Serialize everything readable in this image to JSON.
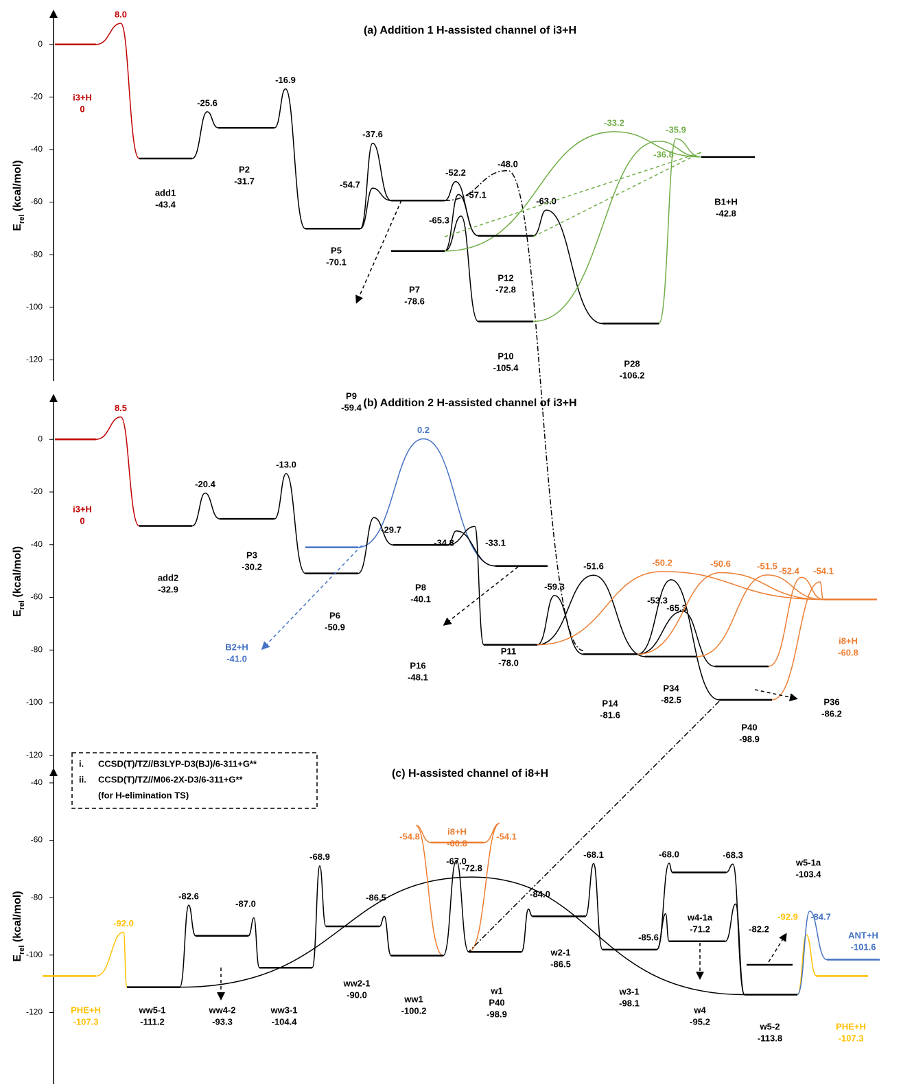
{
  "chart_data": [
    {
      "type": "energy-diagram",
      "title": "(a) Addition 1 H-assisted channel of i3+H",
      "ylabel": [
        "E",
        "rel",
        " (kcal/mol)"
      ],
      "ylim": [
        13,
        -128
      ],
      "yticks": [
        0,
        -20,
        -40,
        -60,
        -80,
        -100,
        -120
      ],
      "levels": {
        "names": [
          "i3+H",
          "add1",
          "P2",
          "P5",
          "P9",
          "P7",
          "P12",
          "P10",
          "P28",
          "B1+H"
        ],
        "values": [
          0,
          -43.4,
          -31.7,
          -70.1,
          -59.4,
          -78.6,
          -72.8,
          -105.4,
          -106.2,
          -42.8
        ],
        "value_labels": [
          "0",
          "-43.4",
          "-31.7",
          "-70.1",
          "-59.4",
          "-78.6",
          "-72.8",
          "-105.4",
          "-106.2",
          "-42.8"
        ],
        "colors": [
          "#c00000",
          "#000000",
          "#000000",
          "#000000",
          "#000000",
          "#000000",
          "#000000",
          "#000000",
          "#000000",
          "#000000"
        ]
      },
      "barriers": {
        "values": [
          8.0,
          -25.6,
          -16.9,
          -37.6,
          -54.7,
          -52.2,
          -57.1,
          -65.3,
          -48.0,
          -63.0,
          -33.2,
          -36.8,
          -35.9
        ],
        "value_labels": [
          "8.0",
          "-25.6",
          "-16.9",
          "-37.6",
          "-54.7",
          "-52.2",
          "-57.1",
          "-65.3",
          "-48.0",
          "-63.0",
          "-33.2",
          "-36.8",
          "-35.9"
        ],
        "colors": [
          "#c00000",
          "#000000",
          "#000000",
          "#000000",
          "#000000",
          "#000000",
          "#000000",
          "#000000",
          "#000000",
          "#000000",
          "#70ad47",
          "#70ad47",
          "#70ad47"
        ]
      }
    },
    {
      "type": "energy-diagram",
      "title": "(b) Addition 2 H-assisted channel of i3+H",
      "ylabel": [
        "E",
        "rel",
        " (kcal/mol)"
      ],
      "ylim": [
        17,
        -125
      ],
      "yticks": [
        0,
        -20,
        -40,
        -60,
        -80,
        -100,
        -120
      ],
      "levels": {
        "names": [
          "i3+H",
          "add2",
          "P3",
          "B2+H",
          "P6",
          "P8",
          "P16",
          "P11",
          "P14",
          "P34",
          "P36",
          "P40",
          "i8+H"
        ],
        "values": [
          0,
          -32.9,
          -30.2,
          -41.0,
          -50.9,
          -40.1,
          -48.1,
          -78.0,
          -81.6,
          -82.5,
          -86.2,
          -98.9,
          -60.8
        ],
        "value_labels": [
          "0",
          "-32.9",
          "-30.2",
          "-41.0",
          "-50.9",
          "-40.1",
          "-48.1",
          "-78.0",
          "-81.6",
          "-82.5",
          "-86.2",
          "-98.9",
          "-60.8"
        ],
        "colors": [
          "#c00000",
          "#000000",
          "#000000",
          "#4472c4",
          "#000000",
          "#000000",
          "#000000",
          "#000000",
          "#000000",
          "#000000",
          "#000000",
          "#000000",
          "#ed7d31"
        ]
      },
      "barriers": {
        "values": [
          8.5,
          -20.4,
          -13.0,
          0.2,
          -29.7,
          -34.8,
          -33.1,
          -59.3,
          -51.6,
          -53.3,
          -65.3,
          -50.2,
          -50.6,
          -51.5,
          -52.4,
          -54.1
        ],
        "value_labels": [
          "8.5",
          "-20.4",
          "-13.0",
          "0.2",
          "-29.7",
          "-34.8",
          "-33.1",
          "-59.3",
          "-51.6",
          "-53.3",
          "-65.3",
          "-50.2",
          "-50.6",
          "-51.5",
          "-52.4",
          "-54.1"
        ],
        "colors": [
          "#c00000",
          "#000000",
          "#000000",
          "#4472c4",
          "#000000",
          "#000000",
          "#000000",
          "#000000",
          "#000000",
          "#000000",
          "#000000",
          "#ed7d31",
          "#ed7d31",
          "#ed7d31",
          "#ed7d31",
          "#ed7d31"
        ]
      }
    },
    {
      "type": "energy-diagram",
      "title": "(c) H-assisted channel of i8+H",
      "ylabel": [
        "E",
        "rel",
        " (kcal/mol)"
      ],
      "ylim": [
        -35,
        -145
      ],
      "yticks": [
        -40,
        -60,
        -80,
        -100,
        -120
      ],
      "levels": {
        "names": [
          "PHE+H",
          "ww5-1",
          "ww4-2",
          "ww3-1",
          "ww2-1",
          "ww1",
          "i8+H",
          [
            "w1",
            "P40"
          ],
          "w2-1",
          "w3-1",
          "w4-1a",
          "w4",
          "w5-2",
          "w5-1a",
          "ANT+H",
          "PHE+H"
        ],
        "values": [
          -107.3,
          -111.2,
          -93.3,
          -104.4,
          -90.0,
          -100.2,
          -60.8,
          -98.9,
          -86.5,
          -98.1,
          -71.2,
          -95.2,
          -113.8,
          -103.4,
          -101.6,
          -107.3
        ],
        "value_labels": [
          "-107.3",
          "-111.2",
          "-93.3",
          "-104.4",
          "-90.0",
          "-100.2",
          "-60.8",
          "-98.9",
          "-86.5",
          "-98.1",
          "-71.2",
          "-95.2",
          "-113.8",
          "-103.4",
          "-101.6",
          "-107.3"
        ],
        "colors": [
          "#ffc000",
          "#000000",
          "#000000",
          "#000000",
          "#000000",
          "#000000",
          "#ed7d31",
          "#000000",
          "#000000",
          "#000000",
          "#000000",
          "#000000",
          "#000000",
          "#000000",
          "#4472c4",
          "#ffc000"
        ]
      },
      "barriers": {
        "values": [
          -92.0,
          -82.6,
          -87.0,
          -68.9,
          -72.8,
          -86.5,
          -67.0,
          -54.8,
          -54.1,
          -84.0,
          -68.1,
          -68.0,
          -85.6,
          -68.3,
          -82.2,
          -92.9,
          -84.7
        ],
        "value_labels": [
          "-92.0",
          "-82.6",
          "-87.0",
          "-68.9",
          "-72.8",
          "-86.5",
          "-67.0",
          "-54.8",
          "-54.1",
          "-84.0",
          "-68.1",
          "-68.0",
          "-85.6",
          "-68.3",
          "-82.2",
          "-92.9",
          "-84.7"
        ],
        "colors": [
          "#ffc000",
          "#000000",
          "#000000",
          "#000000",
          "#000000",
          "#000000",
          "#000000",
          "#ed7d31",
          "#ed7d31",
          "#000000",
          "#000000",
          "#000000",
          "#000000",
          "#000000",
          "#000000",
          "#ffc000",
          "#4472c4"
        ]
      }
    }
  ],
  "notes": {
    "items": [
      [
        "i.",
        "CCSD(T)/TZ//B3LYP-D3(BJ)/6-311+G**"
      ],
      [
        "ii.",
        "CCSD(T)/TZ//M06-2X-D3/6-311+G**"
      ],
      [
        "",
        "(for H-elimination TS)"
      ]
    ]
  }
}
